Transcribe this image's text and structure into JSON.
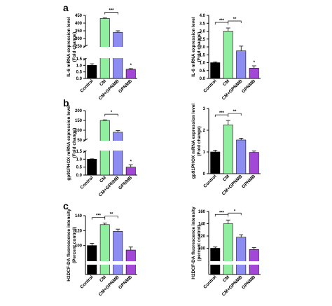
{
  "panel_labels": [
    "a",
    "b",
    "c"
  ],
  "chart_data": [
    {
      "id": "a-left",
      "type": "bar",
      "broken_axis": true,
      "ylabel_lines": [
        "IL-6 mRNA expression level",
        "(Fold change)"
      ],
      "categories": [
        "Control",
        "CM",
        "CM+GPNMB",
        "GPNMB"
      ],
      "colors": [
        "#000000",
        "#8fef9e",
        "#8c8cf2",
        "#a347d6"
      ],
      "values": [
        1.0,
        430,
        340,
        0.7
      ],
      "errors": [
        0.12,
        4,
        10,
        0.05
      ],
      "lower_range": [
        0,
        1.5
      ],
      "upper_range": [
        250,
        450
      ],
      "lower_ticks": [
        0.0,
        0.5,
        1.0,
        1.5
      ],
      "upper_ticks": [
        250,
        300,
        350,
        400,
        450
      ],
      "significance": [
        {
          "from": 1,
          "to": 2,
          "label": "***"
        },
        {
          "at": 3,
          "label": "*"
        }
      ]
    },
    {
      "id": "a-right",
      "type": "bar",
      "broken_axis": false,
      "ylabel_lines": [
        "IL-6 mRNA expression level",
        "(Fold change)"
      ],
      "categories": [
        "Control",
        "CM",
        "CM+GPNMB",
        "GPNMB"
      ],
      "colors": [
        "#000000",
        "#8fef9e",
        "#8c8cf2",
        "#a347d6"
      ],
      "values": [
        1.0,
        3.0,
        1.75,
        0.65
      ],
      "errors": [
        0.05,
        0.2,
        0.3,
        0.15
      ],
      "ylim": [
        0,
        4
      ],
      "ticks": [
        0.0,
        0.5,
        1.0,
        1.5,
        2.0,
        2.5,
        3.0,
        3.5,
        4.0
      ],
      "significance": [
        {
          "from": 0,
          "to": 1,
          "label": "***"
        },
        {
          "from": 1,
          "to": 2,
          "label": "**"
        },
        {
          "at": 3,
          "label": "*"
        }
      ]
    },
    {
      "id": "b-left",
      "type": "bar",
      "broken_axis": true,
      "ylabel_lines": [
        "gp91PHOX mRNA expression level",
        "(Fold change)"
      ],
      "categories": [
        "Control",
        "CM",
        "CM+GPNMB",
        "GPNMB"
      ],
      "colors": [
        "#000000",
        "#8fef9e",
        "#8c8cf2",
        "#a347d6"
      ],
      "values": [
        1.0,
        150,
        90,
        0.5
      ],
      "errors": [
        0.02,
        3,
        8,
        0.15
      ],
      "lower_range": [
        0,
        1.5
      ],
      "upper_range": [
        50,
        200
      ],
      "lower_ticks": [
        0.0,
        0.5,
        1.0,
        1.5
      ],
      "upper_ticks": [
        50,
        100,
        150,
        200
      ],
      "significance": [
        {
          "from": 1,
          "to": 2,
          "label": "*"
        },
        {
          "at": 3,
          "label": "*"
        }
      ]
    },
    {
      "id": "b-right",
      "type": "bar",
      "broken_axis": false,
      "ylabel_lines": [
        "gp91PHOX mRNA expression level",
        "(Fold change)"
      ],
      "categories": [
        "Control",
        "CM",
        "CM+GPNMB",
        "GPNMB"
      ],
      "colors": [
        "#000000",
        "#8fef9e",
        "#8c8cf2",
        "#a347d6"
      ],
      "values": [
        1.0,
        2.25,
        1.55,
        0.98
      ],
      "errors": [
        0.08,
        0.2,
        0.08,
        0.06
      ],
      "ylim": [
        0,
        3
      ],
      "ticks": [
        0,
        1,
        2,
        3
      ],
      "significance": [
        {
          "from": 0,
          "to": 1,
          "label": "***"
        },
        {
          "from": 1,
          "to": 2,
          "label": "**"
        }
      ]
    },
    {
      "id": "c-left",
      "type": "bar",
      "broken_axis": true,
      "ylabel_lines": [
        "H2DCF-DA fluorescence intensity",
        "(Percent control)"
      ],
      "categories": [
        "Control",
        "CM",
        "CM+GPNMB",
        "GPNMB"
      ],
      "colors": [
        "#000000",
        "#8fef9e",
        "#8c8cf2",
        "#a347d6"
      ],
      "values": [
        100,
        128,
        119,
        94
      ],
      "errors": [
        3,
        2,
        3,
        4
      ],
      "upper_range": [
        80,
        140
      ],
      "upper_ticks": [
        100,
        120,
        140
      ],
      "significance": [
        {
          "from": 0,
          "to": 1,
          "label": "***"
        },
        {
          "from": 1,
          "to": 2,
          "label": "**"
        }
      ]
    },
    {
      "id": "c-right",
      "type": "bar",
      "broken_axis": true,
      "ylabel_lines": [
        "H2DCF-DA fluorescence intensity",
        "(percent control)"
      ],
      "categories": [
        "Control",
        "CM",
        "CM+GPNMB",
        "GPNMB"
      ],
      "colors": [
        "#000000",
        "#8fef9e",
        "#8c8cf2",
        "#a347d6"
      ],
      "values": [
        100,
        140,
        118,
        98
      ],
      "errors": [
        2,
        6,
        4,
        3
      ],
      "upper_range": [
        80,
        160
      ],
      "upper_ticks": [
        100,
        120,
        140,
        160
      ],
      "significance": [
        {
          "from": 0,
          "to": 1,
          "label": "***"
        },
        {
          "from": 1,
          "to": 2,
          "label": "*"
        }
      ]
    }
  ]
}
